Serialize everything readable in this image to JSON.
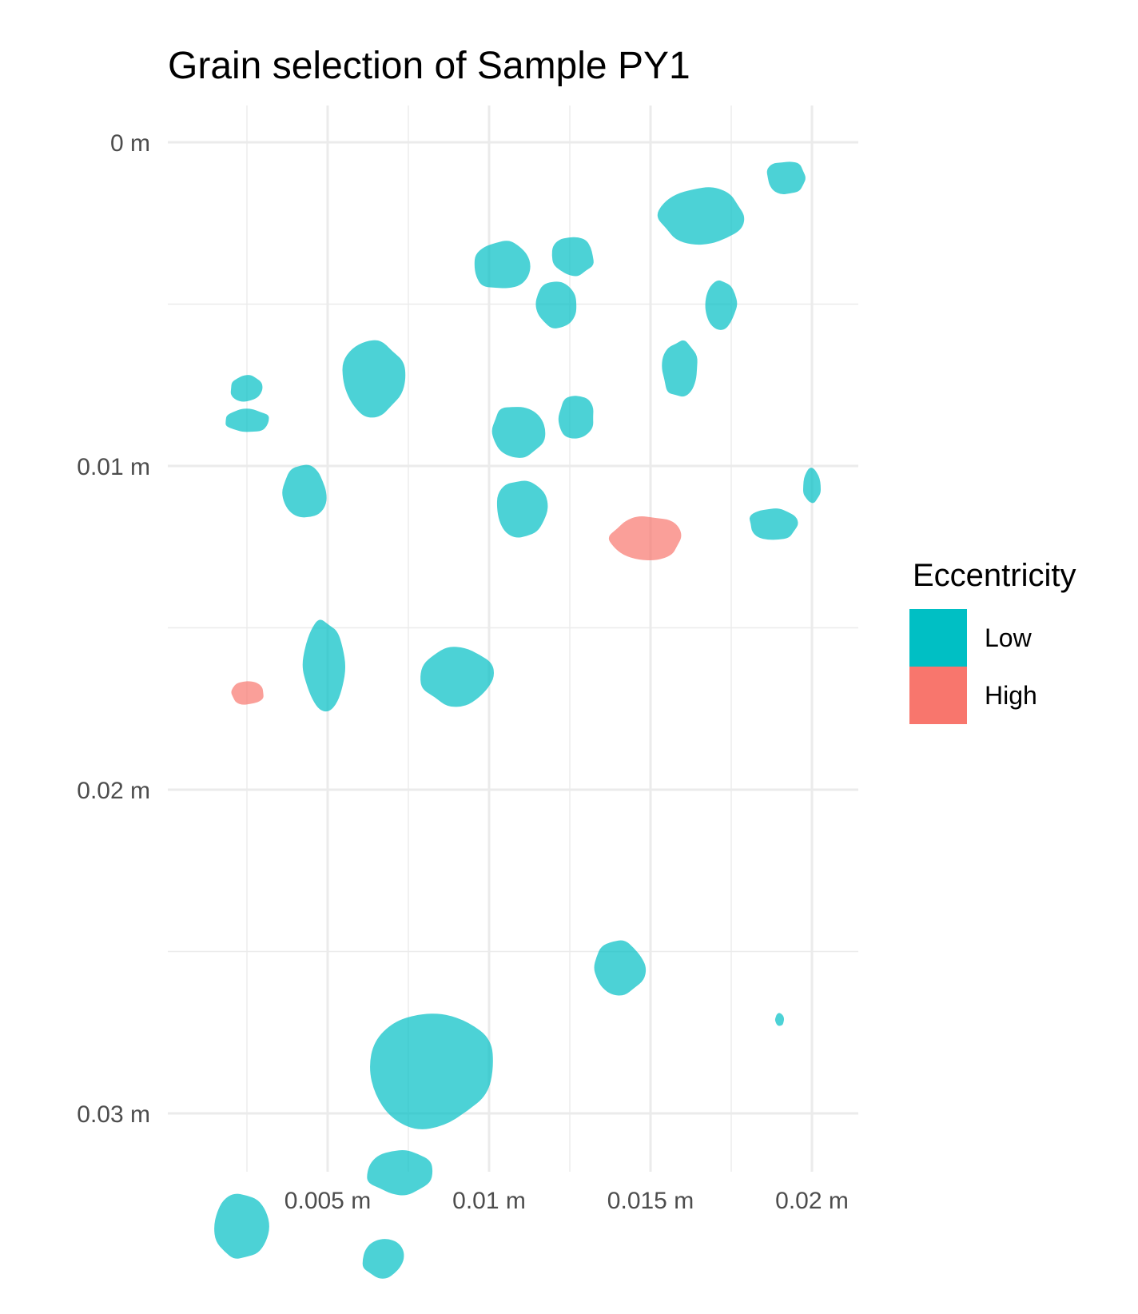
{
  "chart_data": {
    "type": "scatter",
    "title": "Grain selection of Sample PY1",
    "xlabel": "",
    "ylabel": "",
    "xlim": [
      0,
      0.0213
    ],
    "ylim": [
      0,
      0.0317
    ],
    "y_reversed": true,
    "grid": true,
    "x_ticks": [
      {
        "value": 0.005,
        "label": "0.005 m"
      },
      {
        "value": 0.01,
        "label": "0.01 m"
      },
      {
        "value": 0.015,
        "label": "0.015 m"
      },
      {
        "value": 0.02,
        "label": "0.02 m"
      }
    ],
    "y_ticks": [
      {
        "value": 0,
        "label": "0 m"
      },
      {
        "value": 0.01,
        "label": "0.01 m"
      },
      {
        "value": 0.02,
        "label": "0.02 m"
      },
      {
        "value": 0.03,
        "label": "0.03 m"
      }
    ],
    "legend": {
      "title": "Eccentricity",
      "position": "right",
      "entries": [
        {
          "label": "Low",
          "color": "#00BFC4"
        },
        {
          "label": "High",
          "color": "#F8766D"
        }
      ]
    },
    "series": [
      {
        "name": "Low",
        "color": "#00BFC4",
        "grains": [
          {
            "x": 0.0166,
            "y": 0.0023,
            "w": 0.0028,
            "h": 0.0019
          },
          {
            "x": 0.0192,
            "y": 0.0011,
            "w": 0.0013,
            "h": 0.0011
          },
          {
            "x": 0.0104,
            "y": 0.0038,
            "w": 0.0019,
            "h": 0.0016
          },
          {
            "x": 0.0126,
            "y": 0.0035,
            "w": 0.0014,
            "h": 0.0013
          },
          {
            "x": 0.0121,
            "y": 0.005,
            "w": 0.0014,
            "h": 0.0015
          },
          {
            "x": 0.0172,
            "y": 0.005,
            "w": 0.001,
            "h": 0.0016
          },
          {
            "x": 0.0159,
            "y": 0.007,
            "w": 0.0012,
            "h": 0.0018
          },
          {
            "x": 0.0064,
            "y": 0.0073,
            "w": 0.0021,
            "h": 0.0024
          },
          {
            "x": 0.0025,
            "y": 0.0076,
            "w": 0.0011,
            "h": 0.0009
          },
          {
            "x": 0.0025,
            "y": 0.0086,
            "w": 0.0015,
            "h": 0.0008
          },
          {
            "x": 0.0109,
            "y": 0.0089,
            "w": 0.0018,
            "h": 0.0017
          },
          {
            "x": 0.0127,
            "y": 0.0085,
            "w": 0.0012,
            "h": 0.0014
          },
          {
            "x": 0.0043,
            "y": 0.0108,
            "w": 0.0014,
            "h": 0.0017
          },
          {
            "x": 0.011,
            "y": 0.0113,
            "w": 0.0016,
            "h": 0.0019
          },
          {
            "x": 0.0188,
            "y": 0.0118,
            "w": 0.0016,
            "h": 0.0011
          },
          {
            "x": 0.02,
            "y": 0.0106,
            "w": 0.0006,
            "h": 0.0011
          },
          {
            "x": 0.0049,
            "y": 0.0162,
            "w": 0.0014,
            "h": 0.003
          },
          {
            "x": 0.009,
            "y": 0.0165,
            "w": 0.0025,
            "h": 0.0019
          },
          {
            "x": 0.014,
            "y": 0.0255,
            "w": 0.0017,
            "h": 0.0017
          },
          {
            "x": 0.019,
            "y": 0.0271,
            "w": 0.0003,
            "h": 0.0004
          },
          {
            "x": 0.0082,
            "y": 0.0286,
            "w": 0.004,
            "h": 0.0039
          },
          {
            "x": 0.0072,
            "y": 0.0318,
            "w": 0.0021,
            "h": 0.0015
          },
          {
            "x": 0.0023,
            "y": 0.0335,
            "w": 0.0018,
            "h": 0.0022
          },
          {
            "x": 0.0067,
            "y": 0.0345,
            "w": 0.0014,
            "h": 0.0013
          }
        ]
      },
      {
        "name": "High",
        "color": "#F8766D",
        "grains": [
          {
            "x": 0.0149,
            "y": 0.0122,
            "w": 0.0024,
            "h": 0.0014
          },
          {
            "x": 0.0025,
            "y": 0.017,
            "w": 0.0011,
            "h": 0.0008
          }
        ]
      }
    ]
  }
}
